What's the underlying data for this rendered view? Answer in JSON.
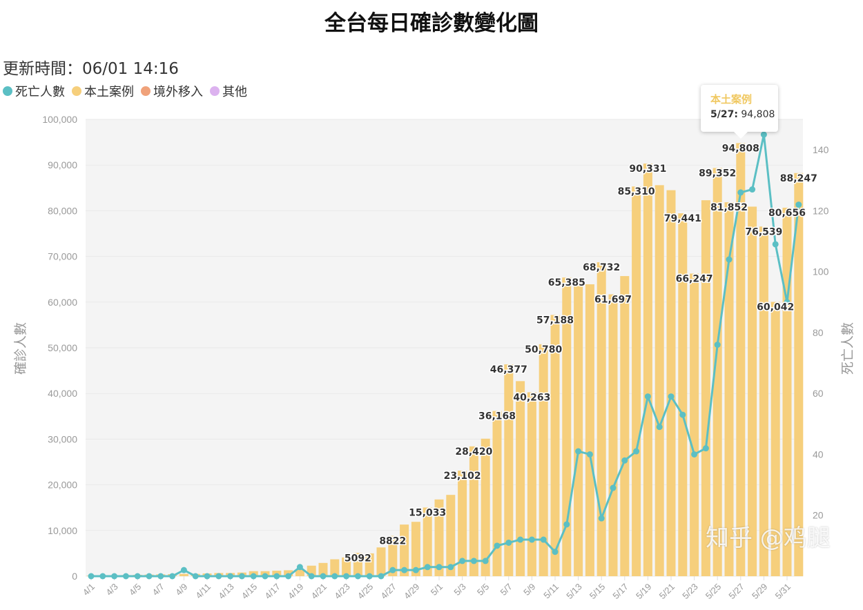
{
  "chart_data": {
    "type": "bar",
    "title": "全台每日確診數變化圖",
    "subtitle": "更新時間：06/01 14:16",
    "xlabel": "",
    "ylabel": "確診人數",
    "y2label": "死亡人數",
    "ylim": [
      0,
      100000
    ],
    "y2lim": [
      0,
      150
    ],
    "yticks": [
      "0",
      "10,000",
      "20,000",
      "30,000",
      "40,000",
      "50,000",
      "60,000",
      "70,000",
      "80,000",
      "90,000",
      "100,000"
    ],
    "y2ticks": [
      "20",
      "40",
      "60",
      "80",
      "100",
      "120",
      "140"
    ],
    "grid": true,
    "legend_placement": "top-left",
    "legend": [
      {
        "name": "死亡人數",
        "color": "#5bbfc4"
      },
      {
        "name": "本土案例",
        "color": "#f6cf7c"
      },
      {
        "name": "境外移入",
        "color": "#f0a27a"
      },
      {
        "name": "其他",
        "color": "#dcb2ef"
      }
    ],
    "categories": [
      "4/1",
      "4/2",
      "4/3",
      "4/4",
      "4/5",
      "4/6",
      "4/7",
      "4/8",
      "4/9",
      "4/10",
      "4/11",
      "4/12",
      "4/13",
      "4/14",
      "4/15",
      "4/16",
      "4/17",
      "4/18",
      "4/19",
      "4/20",
      "4/21",
      "4/22",
      "4/23",
      "4/24",
      "4/25",
      "4/26",
      "4/27",
      "4/28",
      "4/29",
      "4/30",
      "5/1",
      "5/2",
      "5/3",
      "5/4",
      "5/5",
      "5/6",
      "5/7",
      "5/8",
      "5/9",
      "5/10",
      "5/11",
      "5/12",
      "5/13",
      "5/14",
      "5/15",
      "5/16",
      "5/17",
      "5/18",
      "5/19",
      "5/20",
      "5/21",
      "5/22",
      "5/23",
      "5/24",
      "5/25",
      "5/26",
      "5/27",
      "5/28",
      "5/29",
      "5/30",
      "5/31",
      "6/1"
    ],
    "xtick_labels": [
      "4/1",
      "4/3",
      "4/5",
      "4/7",
      "4/9",
      "4/11",
      "4/13",
      "4/15",
      "4/17",
      "4/19",
      "4/21",
      "4/23",
      "4/25",
      "4/27",
      "4/29",
      "5/1",
      "5/3",
      "5/5",
      "5/7",
      "5/9",
      "5/11",
      "5/13",
      "5/15",
      "5/17",
      "5/19",
      "5/21",
      "5/23",
      "5/25",
      "5/27",
      "5/29",
      "5/31"
    ],
    "series": [
      {
        "name": "本土案例",
        "type": "bar",
        "axis": "left",
        "color": "#f6cf7c",
        "values": [
          100,
          150,
          200,
          250,
          300,
          350,
          400,
          450,
          500,
          500,
          600,
          700,
          700,
          800,
          1100,
          1100,
          1200,
          1300,
          1500,
          2300,
          2900,
          3700,
          4100,
          5092,
          5000,
          6300,
          8822,
          11300,
          11900,
          15033,
          16800,
          17800,
          23102,
          28420,
          30100,
          36168,
          46377,
          42700,
          40263,
          50780,
          57188,
          65385,
          64900,
          63900,
          68732,
          61697,
          65700,
          85310,
          90331,
          85600,
          84500,
          79441,
          66247,
          82300,
          89352,
          81852,
          94808,
          80900,
          76539,
          60042,
          80656,
          88247
        ],
        "labels": [
          null,
          null,
          null,
          null,
          null,
          null,
          null,
          null,
          null,
          null,
          null,
          null,
          null,
          null,
          null,
          null,
          null,
          null,
          null,
          null,
          null,
          null,
          null,
          "5092",
          null,
          null,
          "8822",
          null,
          null,
          "15,033",
          null,
          null,
          "23,102",
          "28,420",
          null,
          "36,168",
          "46,377",
          null,
          "40,263",
          "50,780",
          "57,188",
          "65,385",
          null,
          null,
          "68,732",
          "61,697",
          null,
          "85,310",
          "90,331",
          null,
          null,
          "79,441",
          "66,247",
          null,
          "89,352",
          "81,852",
          "94,808",
          null,
          "76,539",
          "60,042",
          "80,656",
          "88,247"
        ]
      },
      {
        "name": "死亡人數",
        "type": "line",
        "axis": "right",
        "color": "#5bbfc4",
        "values": [
          0,
          0,
          0,
          0,
          0,
          0,
          0,
          0,
          2,
          0,
          0,
          0,
          0,
          0,
          0,
          0,
          0,
          0,
          3,
          0,
          0,
          0,
          0,
          0,
          0,
          0,
          2,
          2,
          2,
          3,
          3,
          3,
          5,
          5,
          5,
          10,
          11,
          12,
          12,
          12,
          8,
          17,
          41,
          40,
          19,
          29,
          38,
          41,
          59,
          49,
          59,
          53,
          40,
          42,
          76,
          104,
          126,
          127,
          145,
          109,
          90,
          122
        ]
      }
    ],
    "tooltip": {
      "series": "本土案例",
      "date": "5/27:",
      "value": "94,808"
    }
  },
  "watermark": "知乎 @鸡腿"
}
